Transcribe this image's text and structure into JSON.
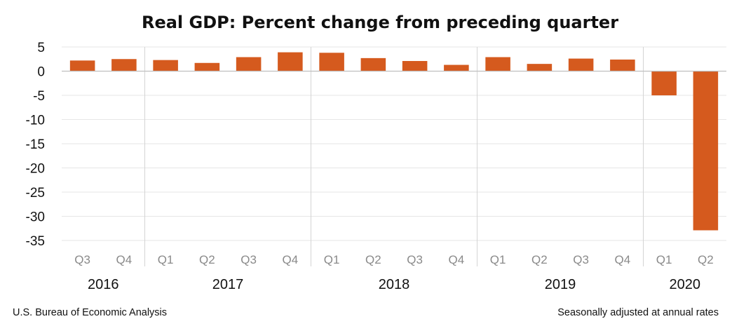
{
  "chart_data": {
    "type": "bar",
    "title": "Real GDP:  Percent change from preceding quarter",
    "categories": [
      "Q3",
      "Q4",
      "Q1",
      "Q2",
      "Q3",
      "Q4",
      "Q1",
      "Q2",
      "Q3",
      "Q4",
      "Q1",
      "Q2",
      "Q3",
      "Q4",
      "Q1",
      "Q2"
    ],
    "years": [
      {
        "label": "2016",
        "count": 2
      },
      {
        "label": "2017",
        "count": 4
      },
      {
        "label": "2018",
        "count": 4
      },
      {
        "label": "2019",
        "count": 4
      },
      {
        "label": "2020",
        "count": 2
      }
    ],
    "series": [
      {
        "name": "Real GDP percent change",
        "values": [
          2.2,
          2.5,
          2.3,
          1.7,
          2.9,
          3.9,
          3.8,
          2.7,
          2.1,
          1.3,
          2.9,
          1.5,
          2.6,
          2.4,
          -5.0,
          -32.9
        ]
      }
    ],
    "ylim": [
      -35,
      5
    ],
    "yticks": [
      "5",
      "0",
      "-5",
      "-10",
      "-15",
      "-20",
      "-25",
      "-30",
      "-35"
    ],
    "ytick_values": [
      5,
      0,
      -5,
      -10,
      -15,
      -20,
      -25,
      -30,
      -35
    ],
    "xlabel": "",
    "ylabel": "",
    "bar_color": "#d55a1e",
    "grid": true
  },
  "footer": {
    "source": "U.S. Bureau of Economic Analysis",
    "note": "Seasonally adjusted at annual rates"
  }
}
